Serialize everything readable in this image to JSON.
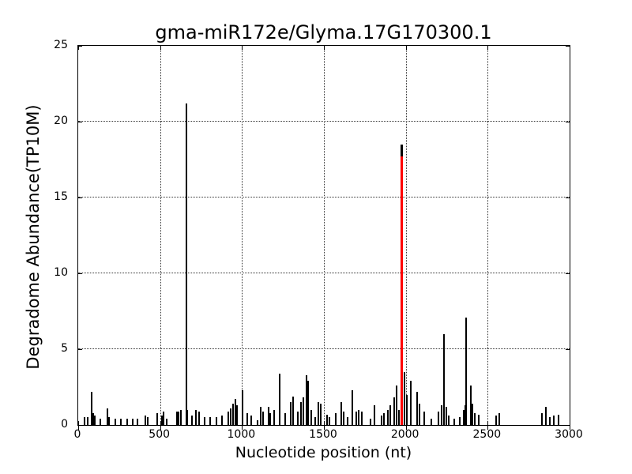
{
  "figure": {
    "title": "gma-miR172e/Glyma.17G170300.1",
    "xlabel": "Nucleotide position (nt)",
    "ylabel": "Degradome Abundance(TP10M)"
  },
  "chart_data": {
    "type": "bar",
    "title": "gma-miR172e/Glyma.17G170300.1",
    "xlabel": "Nucleotide position (nt)",
    "ylabel": "Degradome Abundance(TP10M)",
    "xlim": [
      0,
      3000
    ],
    "ylim": [
      0,
      25
    ],
    "xticks": [
      0,
      500,
      1000,
      1500,
      2000,
      2500,
      3000
    ],
    "yticks": [
      0,
      5,
      10,
      15,
      20,
      25
    ],
    "grid": {
      "on": true,
      "style": "dotted",
      "color": "#333333",
      "x_at": [
        500,
        1000,
        1500,
        2000,
        2500
      ],
      "y_at": [
        5,
        10,
        15,
        20
      ]
    },
    "colors": {
      "bar": "#000000",
      "highlight": "#ff0000",
      "background": "#ffffff",
      "axis": "#000000"
    },
    "highlight_bar": {
      "x": 1972,
      "total_height": 18.5,
      "red_height": 17.7
    },
    "max_black_peak": {
      "x": 659,
      "height": 21.2
    },
    "bars": [
      [
        40,
        0.5
      ],
      [
        58,
        0.5
      ],
      [
        82,
        2.2
      ],
      [
        93,
        0.8
      ],
      [
        103,
        0.6
      ],
      [
        135,
        0.4
      ],
      [
        178,
        1.1
      ],
      [
        190,
        0.5
      ],
      [
        228,
        0.4
      ],
      [
        262,
        0.4
      ],
      [
        300,
        0.4
      ],
      [
        332,
        0.4
      ],
      [
        362,
        0.4
      ],
      [
        412,
        0.6
      ],
      [
        425,
        0.5
      ],
      [
        483,
        0.8
      ],
      [
        510,
        0.6
      ],
      [
        522,
        0.9
      ],
      [
        540,
        0.4
      ],
      [
        603,
        0.9
      ],
      [
        614,
        0.9
      ],
      [
        625,
        1.0
      ],
      [
        659,
        21.2
      ],
      [
        668,
        1.0
      ],
      [
        693,
        0.6
      ],
      [
        719,
        1.0
      ],
      [
        736,
        0.9
      ],
      [
        770,
        0.5
      ],
      [
        806,
        0.5
      ],
      [
        843,
        0.5
      ],
      [
        878,
        0.6
      ],
      [
        916,
        0.9
      ],
      [
        932,
        1.1
      ],
      [
        947,
        1.4
      ],
      [
        958,
        1.7
      ],
      [
        968,
        1.3
      ],
      [
        1003,
        2.3
      ],
      [
        1030,
        0.8
      ],
      [
        1058,
        0.6
      ],
      [
        1095,
        0.3
      ],
      [
        1115,
        1.2
      ],
      [
        1130,
        0.9
      ],
      [
        1160,
        1.2
      ],
      [
        1172,
        0.8
      ],
      [
        1196,
        1.0
      ],
      [
        1232,
        3.4
      ],
      [
        1262,
        0.8
      ],
      [
        1298,
        1.5
      ],
      [
        1313,
        1.9
      ],
      [
        1340,
        0.9
      ],
      [
        1360,
        1.5
      ],
      [
        1376,
        1.8
      ],
      [
        1394,
        3.3
      ],
      [
        1403,
        2.9
      ],
      [
        1424,
        1.0
      ],
      [
        1448,
        0.5
      ],
      [
        1468,
        1.5
      ],
      [
        1480,
        1.4
      ],
      [
        1518,
        0.7
      ],
      [
        1536,
        0.5
      ],
      [
        1570,
        0.8
      ],
      [
        1608,
        1.5
      ],
      [
        1621,
        0.9
      ],
      [
        1645,
        0.5
      ],
      [
        1674,
        2.3
      ],
      [
        1700,
        0.9
      ],
      [
        1712,
        1.0
      ],
      [
        1730,
        0.9
      ],
      [
        1786,
        0.4
      ],
      [
        1810,
        1.3
      ],
      [
        1850,
        0.6
      ],
      [
        1868,
        0.8
      ],
      [
        1890,
        1.0
      ],
      [
        1905,
        1.3
      ],
      [
        1930,
        1.8
      ],
      [
        1943,
        2.6
      ],
      [
        1958,
        1.0
      ],
      [
        1992,
        3.5
      ],
      [
        2008,
        2.0
      ],
      [
        2030,
        2.9
      ],
      [
        2068,
        2.2
      ],
      [
        2085,
        1.4
      ],
      [
        2114,
        0.9
      ],
      [
        2154,
        0.4
      ],
      [
        2200,
        0.9
      ],
      [
        2218,
        1.3
      ],
      [
        2235,
        6.0
      ],
      [
        2247,
        1.2
      ],
      [
        2260,
        0.6
      ],
      [
        2295,
        0.4
      ],
      [
        2330,
        0.5
      ],
      [
        2352,
        1.0
      ],
      [
        2362,
        1.3
      ],
      [
        2370,
        7.1
      ],
      [
        2395,
        2.6
      ],
      [
        2408,
        1.4
      ],
      [
        2420,
        0.8
      ],
      [
        2447,
        0.7
      ],
      [
        2550,
        0.6
      ],
      [
        2573,
        0.8
      ],
      [
        2832,
        0.8
      ],
      [
        2856,
        1.2
      ],
      [
        2880,
        0.5
      ],
      [
        2904,
        0.6
      ],
      [
        2933,
        0.7
      ]
    ]
  }
}
